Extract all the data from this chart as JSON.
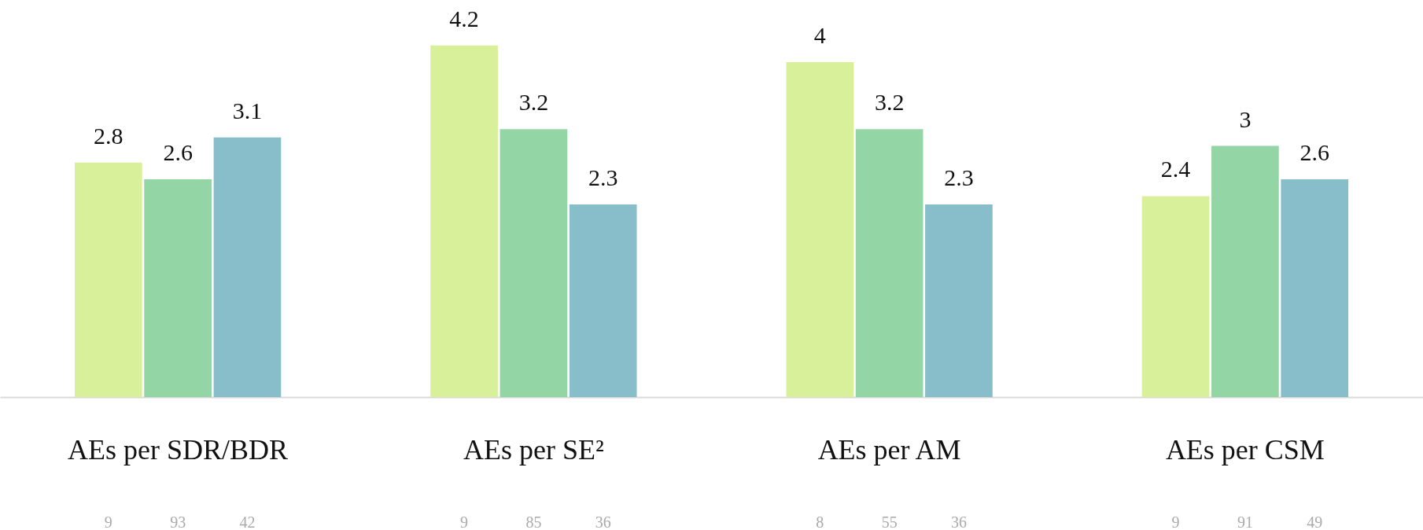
{
  "chart_data": {
    "type": "bar",
    "categories": [
      "AEs per SDR/BDR",
      "AEs per SE²",
      "AEs per AM",
      "AEs per CSM"
    ],
    "series": [
      {
        "color": "#d9f09a",
        "values": [
          2.8,
          4.2,
          4,
          2.4
        ]
      },
      {
        "color": "#94d5a5",
        "values": [
          2.6,
          3.2,
          3.2,
          3
        ]
      },
      {
        "color": "#87bec9",
        "values": [
          3.1,
          2.3,
          2.3,
          2.6
        ]
      }
    ],
    "data_labels": true,
    "grid": false,
    "tick_labels": "x",
    "annotations": [
      "9",
      "93",
      "42",
      "9",
      "85",
      "36",
      "8",
      "55",
      "36",
      "9",
      "91",
      "49"
    ]
  }
}
